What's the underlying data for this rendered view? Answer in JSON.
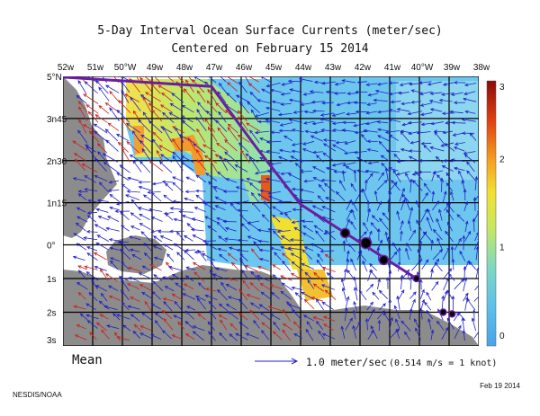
{
  "chart_data": {
    "type": "vector-field",
    "title_line1": "5-Day Interval Ocean Surface Currents (meter/sec)",
    "title_line2": "Centered on February 15 2014",
    "x_axis": {
      "ticks": [
        {
          "lon": -52,
          "label": "52w"
        },
        {
          "lon": -51,
          "label": "51w"
        },
        {
          "lon": -50,
          "label": "50°W"
        },
        {
          "lon": -49,
          "label": "49w"
        },
        {
          "lon": -48,
          "label": "48w"
        },
        {
          "lon": -47,
          "label": "47w"
        },
        {
          "lon": -46,
          "label": "46w"
        },
        {
          "lon": -45,
          "label": "45w"
        },
        {
          "lon": -44,
          "label": "44w"
        },
        {
          "lon": -43,
          "label": "43w"
        },
        {
          "lon": -42,
          "label": "42w"
        },
        {
          "lon": -41,
          "label": "41w"
        },
        {
          "lon": -40,
          "label": "40°W"
        },
        {
          "lon": -39,
          "label": "39w"
        },
        {
          "lon": -38,
          "label": "38w"
        }
      ],
      "range": [
        -52,
        -38
      ]
    },
    "y_axis": {
      "ticks": [
        {
          "lat": 5.0,
          "label": "5°N"
        },
        {
          "lat": 3.75,
          "label": "3n45"
        },
        {
          "lat": 2.5,
          "label": "2n30"
        },
        {
          "lat": 1.25,
          "label": "1n15"
        },
        {
          "lat": 0.0,
          "label": "0°"
        },
        {
          "lat": -1.0,
          "label": "1s"
        },
        {
          "lat": -2.0,
          "label": "2s"
        },
        {
          "lat": -3.0,
          "label": "3s"
        }
      ],
      "range": [
        -3,
        5
      ]
    },
    "colorbar": {
      "min": 0,
      "max": 3,
      "ticks": [
        "0",
        "1",
        "2",
        "3"
      ],
      "units": "m/s"
    },
    "track": [
      {
        "lon": -52.4,
        "lat": 5.0
      },
      {
        "lon": -47.0,
        "lat": 4.7
      },
      {
        "lon": -45.5,
        "lat": 2.9
      },
      {
        "lon": -44.0,
        "lat": 1.2
      },
      {
        "lon": -40.1,
        "lat": -1.0
      }
    ],
    "drifter_positions": [
      {
        "lon": -52.4,
        "lat": 5.0
      },
      {
        "lon": -42.5,
        "lat": 0.35
      },
      {
        "lon": -41.8,
        "lat": 0.05
      },
      {
        "lon": -41.2,
        "lat": -0.45
      },
      {
        "lon": -40.1,
        "lat": -1.0
      },
      {
        "lon": -39.2,
        "lat": -2.0
      },
      {
        "lon": -38.9,
        "lat": -2.05
      }
    ],
    "legend": {
      "arrow_text": "1.0 meter/sec",
      "conversion_text": "(0.514 m/s = 1 knot)",
      "mean_label": "Mean"
    }
  },
  "footer": {
    "source": "NESDIS/NOAA",
    "date": "Feb 19 2014"
  },
  "colors": {
    "track": "#6a1fa0",
    "land": "#8c8c8c",
    "arrow_blue": "#2020c8",
    "arrow_red": "#cc2020",
    "water_blue": "#6cc6ee"
  }
}
